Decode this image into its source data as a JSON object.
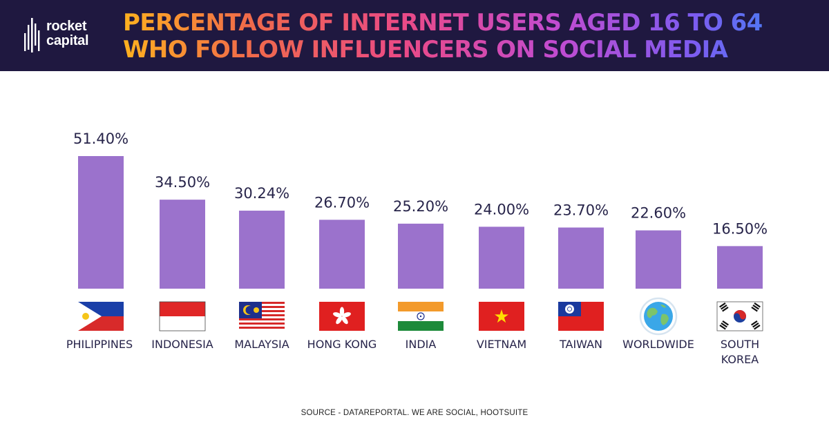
{
  "brand": {
    "name_line1": "rocket",
    "name_line2": "capital"
  },
  "header": {
    "title_line1": "PERCENTAGE OF INTERNET USERS AGED 16 TO 64",
    "title_line2": "WHO FOLLOW INFLUENCERS ON SOCIAL MEDIA"
  },
  "footer": {
    "source": "SOURCE - DATAREPORTAL. WE ARE SOCIAL, HOOTSUITE"
  },
  "colors": {
    "bar": "#9b72cc",
    "header_bg": "#1f1840",
    "text": "#27244a"
  },
  "chart_data": {
    "type": "bar",
    "title": "PERCENTAGE OF INTERNET USERS AGED 16 TO 64 WHO FOLLOW INFLUENCERS ON SOCIAL MEDIA",
    "categories": [
      "PHILIPPINES",
      "INDONESIA",
      "MALAYSIA",
      "HONG KONG",
      "INDIA",
      "VIETNAM",
      "TAIWAN",
      "WORLDWIDE",
      "SOUTH KOREA"
    ],
    "values": [
      51.4,
      34.5,
      30.24,
      26.7,
      25.2,
      24.0,
      23.7,
      22.6,
      16.5
    ],
    "value_labels": [
      "51.40%",
      "34.50%",
      "30.24%",
      "26.70%",
      "25.20%",
      "24.00%",
      "23.70%",
      "22.60%",
      "16.50%"
    ],
    "flag_icons": [
      "philippines-flag-icon",
      "indonesia-flag-icon",
      "malaysia-flag-icon",
      "hong-kong-flag-icon",
      "india-flag-icon",
      "vietnam-flag-icon",
      "taiwan-flag-icon",
      "globe-icon",
      "south-korea-flag-icon"
    ],
    "ylim": [
      0,
      51.4
    ],
    "grid": false,
    "legend": "none"
  }
}
